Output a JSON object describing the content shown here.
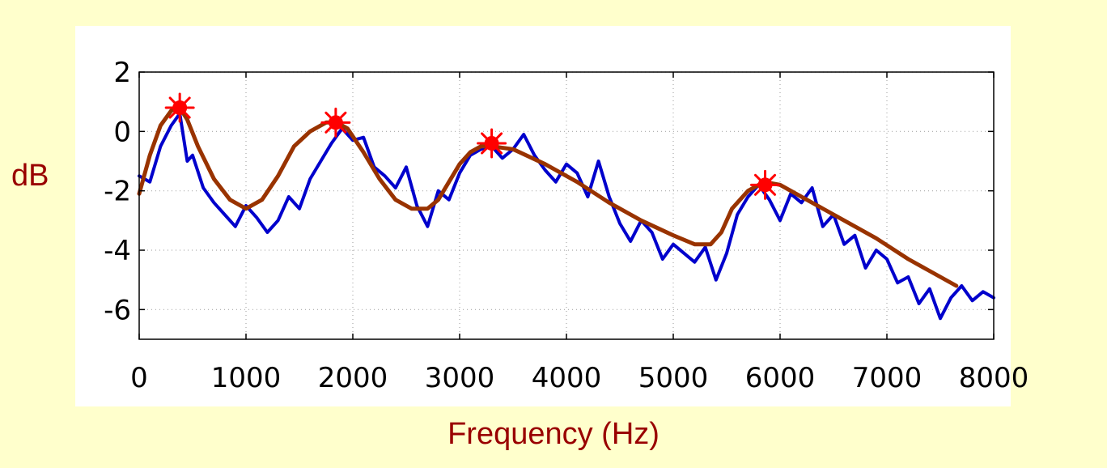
{
  "chart_data": {
    "type": "line",
    "xlabel": "Frequency (Hz)",
    "ylabel": "dB",
    "xlim": [
      0,
      8000
    ],
    "ylim": [
      -7,
      2
    ],
    "x_ticks": [
      0,
      1000,
      2000,
      3000,
      4000,
      5000,
      6000,
      7000,
      8000
    ],
    "y_ticks": [
      2,
      0,
      -2,
      -4,
      -6
    ],
    "grid": true,
    "series": [
      {
        "role": "spectrum",
        "color": "#0000cc",
        "x": [
          0,
          100,
          200,
          300,
          380,
          450,
          500,
          600,
          700,
          800,
          900,
          1000,
          1100,
          1200,
          1300,
          1400,
          1500,
          1600,
          1700,
          1800,
          1900,
          2000,
          2100,
          2200,
          2300,
          2400,
          2500,
          2600,
          2700,
          2800,
          2900,
          3000,
          3100,
          3200,
          3300,
          3400,
          3500,
          3600,
          3700,
          3800,
          3900,
          4000,
          4100,
          4200,
          4300,
          4400,
          4500,
          4600,
          4700,
          4800,
          4900,
          5000,
          5100,
          5200,
          5300,
          5400,
          5500,
          5600,
          5700,
          5800,
          5900,
          6000,
          6100,
          6200,
          6300,
          6400,
          6500,
          6600,
          6700,
          6800,
          6900,
          7000,
          7100,
          7200,
          7300,
          7400,
          7500,
          7600,
          7700,
          7800,
          7900,
          8000
        ],
        "y": [
          -1.5,
          -1.7,
          -0.5,
          0.2,
          0.6,
          -1.0,
          -0.8,
          -1.9,
          -2.4,
          -2.8,
          -3.2,
          -2.5,
          -2.9,
          -3.4,
          -3.0,
          -2.2,
          -2.6,
          -1.6,
          -1.0,
          -0.4,
          0.1,
          -0.3,
          -0.2,
          -1.2,
          -1.5,
          -1.9,
          -1.2,
          -2.5,
          -3.2,
          -2.0,
          -2.3,
          -1.4,
          -0.8,
          -0.6,
          -0.5,
          -0.9,
          -0.6,
          -0.1,
          -0.8,
          -1.3,
          -1.7,
          -1.1,
          -1.4,
          -2.2,
          -1.0,
          -2.2,
          -3.1,
          -3.7,
          -3.0,
          -3.4,
          -4.3,
          -3.8,
          -4.1,
          -4.4,
          -3.9,
          -5.0,
          -4.1,
          -2.8,
          -2.2,
          -1.8,
          -2.3,
          -3.0,
          -2.1,
          -2.4,
          -1.9,
          -3.2,
          -2.8,
          -3.8,
          -3.5,
          -4.6,
          -4.0,
          -4.3,
          -5.1,
          -4.9,
          -5.8,
          -5.3,
          -6.3,
          -5.6,
          -5.2,
          -5.7,
          -5.4,
          -5.6
        ]
      },
      {
        "role": "envelope",
        "color": "#993300",
        "x": [
          0,
          100,
          200,
          300,
          380,
          450,
          550,
          700,
          850,
          1000,
          1150,
          1300,
          1450,
          1600,
          1750,
          1850,
          1950,
          2100,
          2250,
          2400,
          2550,
          2700,
          2800,
          2900,
          3000,
          3100,
          3200,
          3300,
          3500,
          3800,
          4100,
          4400,
          4700,
          5000,
          5200,
          5350,
          5450,
          5550,
          5700,
          5850,
          6000,
          6300,
          6600,
          6900,
          7200,
          7500,
          7650
        ],
        "y": [
          -2.1,
          -0.8,
          0.2,
          0.7,
          0.8,
          0.4,
          -0.5,
          -1.6,
          -2.3,
          -2.6,
          -2.3,
          -1.5,
          -0.5,
          0.0,
          0.3,
          0.3,
          0.1,
          -0.7,
          -1.6,
          -2.3,
          -2.6,
          -2.6,
          -2.3,
          -1.7,
          -1.1,
          -0.7,
          -0.5,
          -0.5,
          -0.6,
          -1.1,
          -1.7,
          -2.4,
          -3.0,
          -3.5,
          -3.8,
          -3.8,
          -3.4,
          -2.6,
          -2.0,
          -1.7,
          -1.8,
          -2.4,
          -3.0,
          -3.6,
          -4.3,
          -4.9,
          -5.2
        ]
      }
    ],
    "peaks": [
      {
        "x": 380,
        "y": 0.8
      },
      {
        "x": 1840,
        "y": 0.3
      },
      {
        "x": 3300,
        "y": -0.4
      },
      {
        "x": 5860,
        "y": -1.8
      }
    ]
  }
}
